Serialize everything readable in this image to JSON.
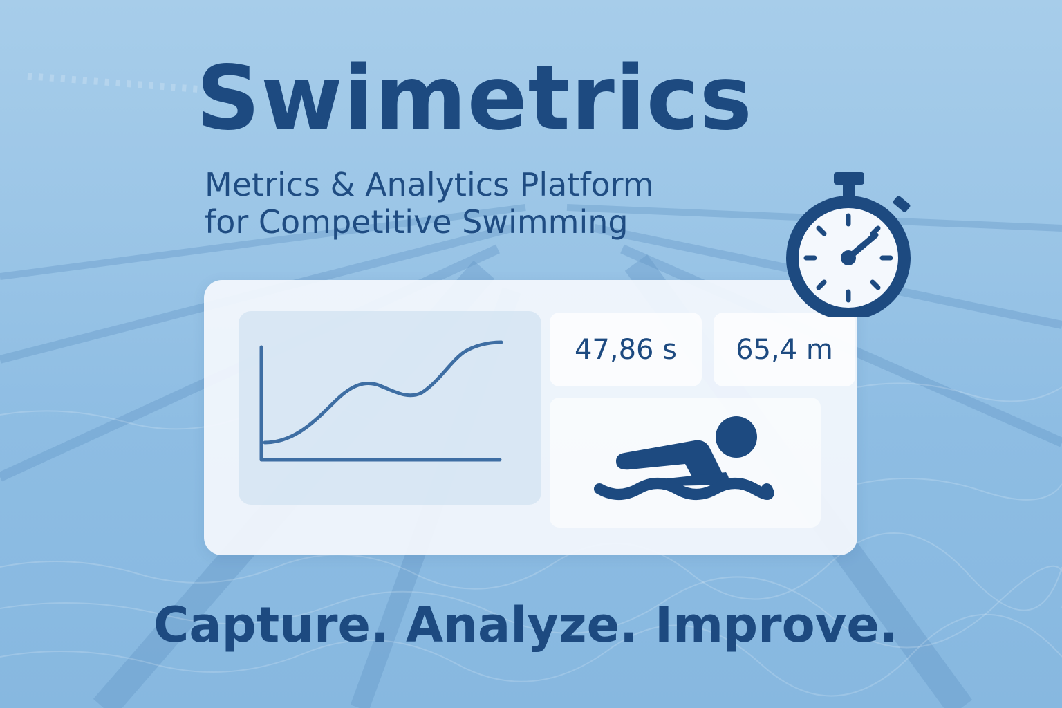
{
  "brand": {
    "title": "Swimetrics",
    "subtitle_line1": "Metrics & Analytics Platform",
    "subtitle_line2": "for Competitive Swimming",
    "tagline": "Capture. Analyze. Improve."
  },
  "metrics": {
    "time": "47,86 s",
    "distance": "65,4 m"
  },
  "icons": {
    "stopwatch": "stopwatch-icon",
    "swimmer": "swimmer-icon",
    "chart": "line-chart-icon"
  },
  "colors": {
    "primary": "#1d4a80",
    "card": "#f4f8fd",
    "water": "#8fbde3"
  }
}
